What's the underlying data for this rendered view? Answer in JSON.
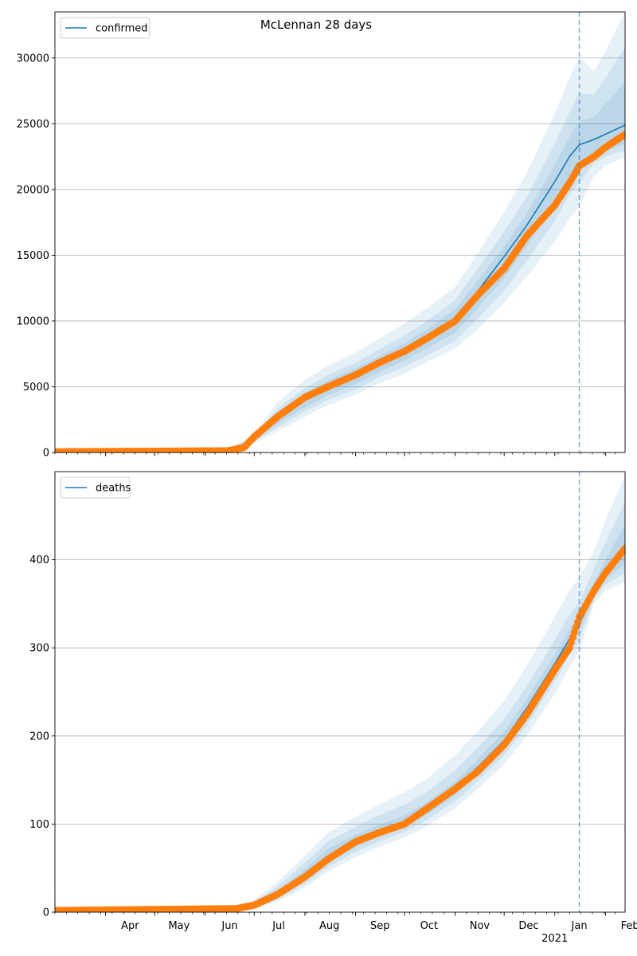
{
  "figure_title": "McLennan 28 days",
  "colors": {
    "model": "#1f77b4",
    "observed": "#ff7f0e",
    "band": "#1f77b4",
    "grid": "#b0b0b0",
    "forecast_line": "#1f77b4"
  },
  "x_axis": {
    "range": [
      "2020-03-01",
      "2021-02-13"
    ],
    "month_ticks": [
      {
        "date": "2020-04-01",
        "label": "Apr"
      },
      {
        "date": "2020-05-01",
        "label": "May"
      },
      {
        "date": "2020-06-01",
        "label": "Jun"
      },
      {
        "date": "2020-07-01",
        "label": "Jul"
      },
      {
        "date": "2020-08-01",
        "label": "Aug"
      },
      {
        "date": "2020-09-01",
        "label": "Sep"
      },
      {
        "date": "2020-10-01",
        "label": "Oct"
      },
      {
        "date": "2020-11-01",
        "label": "Nov"
      },
      {
        "date": "2020-12-01",
        "label": "Dec"
      },
      {
        "date": "2021-01-01",
        "label": "Jan",
        "sublabel": "2021"
      },
      {
        "date": "2021-02-01",
        "label": "Feb"
      }
    ]
  },
  "forecast_start": "2021-01-16",
  "chart_data": [
    {
      "type": "line",
      "panel": "confirmed",
      "title": "McLennan 28 days",
      "xlabel": "",
      "ylabel": "",
      "ylim": [
        0,
        33500
      ],
      "yticks": [
        0,
        5000,
        10000,
        15000,
        20000,
        25000,
        30000
      ],
      "grid": "y",
      "legend": {
        "placement": "top-left",
        "entries": [
          "confirmed"
        ]
      },
      "series": [
        {
          "name": "confirmed",
          "kind": "model-line",
          "x": [
            "2020-03-01",
            "2020-06-15",
            "2020-06-25",
            "2020-07-01",
            "2020-07-15",
            "2020-08-01",
            "2020-08-15",
            "2020-09-01",
            "2020-09-15",
            "2020-10-01",
            "2020-10-15",
            "2020-11-01",
            "2020-11-15",
            "2020-12-01",
            "2020-12-15",
            "2021-01-01",
            "2021-01-10",
            "2021-01-16",
            "2021-01-25",
            "2021-02-01",
            "2021-02-13"
          ],
          "y": [
            60,
            120,
            400,
            1000,
            2500,
            4000,
            4800,
            5700,
            6700,
            7600,
            8700,
            10000,
            12300,
            14900,
            17300,
            20600,
            22500,
            23400,
            23800,
            24200,
            24900
          ]
        },
        {
          "name": "",
          "kind": "observed",
          "x": [
            "2020-03-01",
            "2020-06-15",
            "2020-06-25",
            "2020-07-01",
            "2020-07-15",
            "2020-08-01",
            "2020-08-15",
            "2020-09-01",
            "2020-09-15",
            "2020-10-01",
            "2020-10-15",
            "2020-11-01",
            "2020-11-15",
            "2020-12-01",
            "2020-12-15",
            "2021-01-01",
            "2021-01-10",
            "2021-01-16",
            "2021-01-25",
            "2021-02-01",
            "2021-02-13"
          ],
          "y": [
            60,
            130,
            400,
            1200,
            2700,
            4200,
            5000,
            5900,
            6800,
            7700,
            8700,
            10000,
            12000,
            14000,
            16500,
            18800,
            20500,
            21800,
            22500,
            23200,
            24200
          ]
        }
      ],
      "bands": [
        {
          "x": [
            "2020-03-01",
            "2020-06-15",
            "2020-07-01",
            "2020-07-15",
            "2020-08-01",
            "2020-08-15",
            "2020-09-01",
            "2020-09-15",
            "2020-10-01",
            "2020-10-15",
            "2020-11-01",
            "2020-11-15",
            "2020-12-01",
            "2020-12-15",
            "2021-01-01",
            "2021-01-10",
            "2021-01-16",
            "2021-01-25",
            "2021-02-01",
            "2021-02-13"
          ],
          "lower": [
            0,
            80,
            700,
            1600,
            2700,
            3600,
            4400,
            5200,
            6000,
            6900,
            7900,
            9400,
            11400,
            13400,
            16000,
            17800,
            18700,
            21000,
            21800,
            22500
          ],
          "upper": [
            200,
            250,
            1400,
            3800,
            5500,
            6600,
            7600,
            8600,
            9800,
            11000,
            12600,
            15200,
            18300,
            21300,
            25800,
            28500,
            30100,
            29000,
            30500,
            33500
          ]
        },
        {
          "x": [
            "2020-03-01",
            "2020-06-15",
            "2020-07-01",
            "2020-07-15",
            "2020-08-01",
            "2020-08-15",
            "2020-09-01",
            "2020-09-15",
            "2020-10-01",
            "2020-10-15",
            "2020-11-01",
            "2020-11-15",
            "2020-12-01",
            "2020-12-15",
            "2021-01-01",
            "2021-01-10",
            "2021-01-16",
            "2021-01-25",
            "2021-02-01",
            "2021-02-13"
          ],
          "lower": [
            0,
            90,
            800,
            1900,
            3100,
            4000,
            4800,
            5700,
            6500,
            7400,
            8500,
            10200,
            12300,
            14600,
            17600,
            19600,
            20500,
            22000,
            22500,
            23000
          ],
          "upper": [
            150,
            200,
            1250,
            3300,
            4900,
            5900,
            6800,
            7800,
            8900,
            10000,
            11600,
            14000,
            16800,
            19500,
            23500,
            25900,
            27300,
            27200,
            28500,
            30800
          ]
        },
        {
          "x": [
            "2020-03-01",
            "2020-06-15",
            "2020-07-01",
            "2020-07-15",
            "2020-08-01",
            "2020-08-15",
            "2020-09-01",
            "2020-09-15",
            "2020-10-01",
            "2020-10-15",
            "2020-11-01",
            "2020-11-15",
            "2020-12-01",
            "2020-12-15",
            "2021-01-01",
            "2021-01-10",
            "2021-01-16",
            "2021-01-25",
            "2021-02-01",
            "2021-02-13"
          ],
          "lower": [
            10,
            100,
            880,
            2150,
            3450,
            4350,
            5200,
            6100,
            7000,
            7950,
            9100,
            11000,
            13300,
            15700,
            18900,
            21000,
            21900,
            22600,
            22900,
            23500
          ],
          "upper": [
            110,
            160,
            1150,
            2900,
            4500,
            5500,
            6400,
            7300,
            8300,
            9400,
            10900,
            13100,
            15700,
            18200,
            21900,
            24000,
            25200,
            25500,
            26500,
            28200
          ]
        }
      ]
    },
    {
      "type": "line",
      "panel": "deaths",
      "xlabel": "",
      "ylabel": "",
      "ylim": [
        0,
        500
      ],
      "yticks": [
        0,
        100,
        200,
        300,
        400
      ],
      "grid": "y",
      "legend": {
        "placement": "top-left",
        "entries": [
          "deaths"
        ]
      },
      "series": [
        {
          "name": "deaths",
          "kind": "model-line",
          "x": [
            "2020-03-01",
            "2020-06-20",
            "2020-07-01",
            "2020-07-15",
            "2020-08-01",
            "2020-08-15",
            "2020-09-01",
            "2020-09-15",
            "2020-10-01",
            "2020-10-15",
            "2020-11-01",
            "2020-11-15",
            "2020-12-01",
            "2020-12-15",
            "2021-01-01",
            "2021-01-10",
            "2021-01-16",
            "2021-01-25",
            "2021-02-01",
            "2021-02-13"
          ],
          "y": [
            2,
            4,
            8,
            20,
            42,
            63,
            80,
            92,
            103,
            118,
            140,
            165,
            195,
            232,
            282,
            310,
            328,
            360,
            385,
            410
          ]
        },
        {
          "name": "",
          "kind": "observed",
          "x": [
            "2020-03-01",
            "2020-06-20",
            "2020-07-01",
            "2020-07-15",
            "2020-08-01",
            "2020-08-15",
            "2020-09-01",
            "2020-09-15",
            "2020-10-01",
            "2020-10-15",
            "2020-11-01",
            "2020-11-15",
            "2020-12-01",
            "2020-12-15",
            "2021-01-01",
            "2021-01-10",
            "2021-01-16",
            "2021-01-25",
            "2021-02-01",
            "2021-02-13"
          ],
          "y": [
            2,
            4,
            8,
            20,
            40,
            60,
            80,
            90,
            100,
            118,
            140,
            160,
            190,
            225,
            275,
            300,
            335,
            365,
            385,
            413
          ]
        }
      ],
      "bands": [
        {
          "x": [
            "2020-03-01",
            "2020-06-20",
            "2020-07-01",
            "2020-07-15",
            "2020-08-01",
            "2020-08-15",
            "2020-09-01",
            "2020-09-15",
            "2020-10-01",
            "2020-10-15",
            "2020-11-01",
            "2020-11-15",
            "2020-12-01",
            "2020-12-15",
            "2021-01-01",
            "2021-01-10",
            "2021-01-16",
            "2021-01-25",
            "2021-02-01",
            "2021-02-13"
          ],
          "lower": [
            0,
            1,
            4,
            12,
            28,
            46,
            62,
            74,
            85,
            98,
            118,
            140,
            168,
            200,
            248,
            278,
            296,
            350,
            365,
            375
          ],
          "upper": [
            6,
            8,
            14,
            34,
            64,
            90,
            108,
            122,
            136,
            152,
            178,
            206,
            240,
            280,
            335,
            365,
            380,
            410,
            445,
            495
          ]
        },
        {
          "x": [
            "2020-03-01",
            "2020-06-20",
            "2020-07-01",
            "2020-07-15",
            "2020-08-01",
            "2020-08-15",
            "2020-09-01",
            "2020-09-15",
            "2020-10-01",
            "2020-10-15",
            "2020-11-01",
            "2020-11-15",
            "2020-12-01",
            "2020-12-15",
            "2021-01-01",
            "2021-01-10",
            "2021-01-16",
            "2021-01-25",
            "2021-02-01",
            "2021-02-13"
          ],
          "lower": [
            1,
            2,
            5,
            14,
            32,
            51,
            68,
            80,
            91,
            105,
            126,
            149,
            178,
            212,
            262,
            292,
            310,
            355,
            372,
            385
          ],
          "upper": [
            5,
            7,
            12,
            29,
            56,
            80,
            97,
            110,
            122,
            137,
            161,
            187,
            219,
            257,
            309,
            338,
            352,
            390,
            420,
            465
          ]
        },
        {
          "x": [
            "2020-03-01",
            "2020-06-20",
            "2020-07-01",
            "2020-07-15",
            "2020-08-01",
            "2020-08-15",
            "2020-09-01",
            "2020-09-15",
            "2020-10-01",
            "2020-10-15",
            "2020-11-01",
            "2020-11-15",
            "2020-12-01",
            "2020-12-15",
            "2021-01-01",
            "2021-01-10",
            "2021-01-16",
            "2021-01-25",
            "2021-02-01",
            "2021-02-13"
          ],
          "lower": [
            1,
            3,
            6,
            17,
            36,
            56,
            73,
            86,
            97,
            111,
            133,
            157,
            187,
            223,
            273,
            303,
            320,
            358,
            378,
            395
          ],
          "upper": [
            4,
            6,
            10,
            24,
            49,
            72,
            88,
            99,
            110,
            125,
            148,
            174,
            205,
            242,
            293,
            321,
            338,
            375,
            400,
            440
          ]
        }
      ]
    }
  ]
}
